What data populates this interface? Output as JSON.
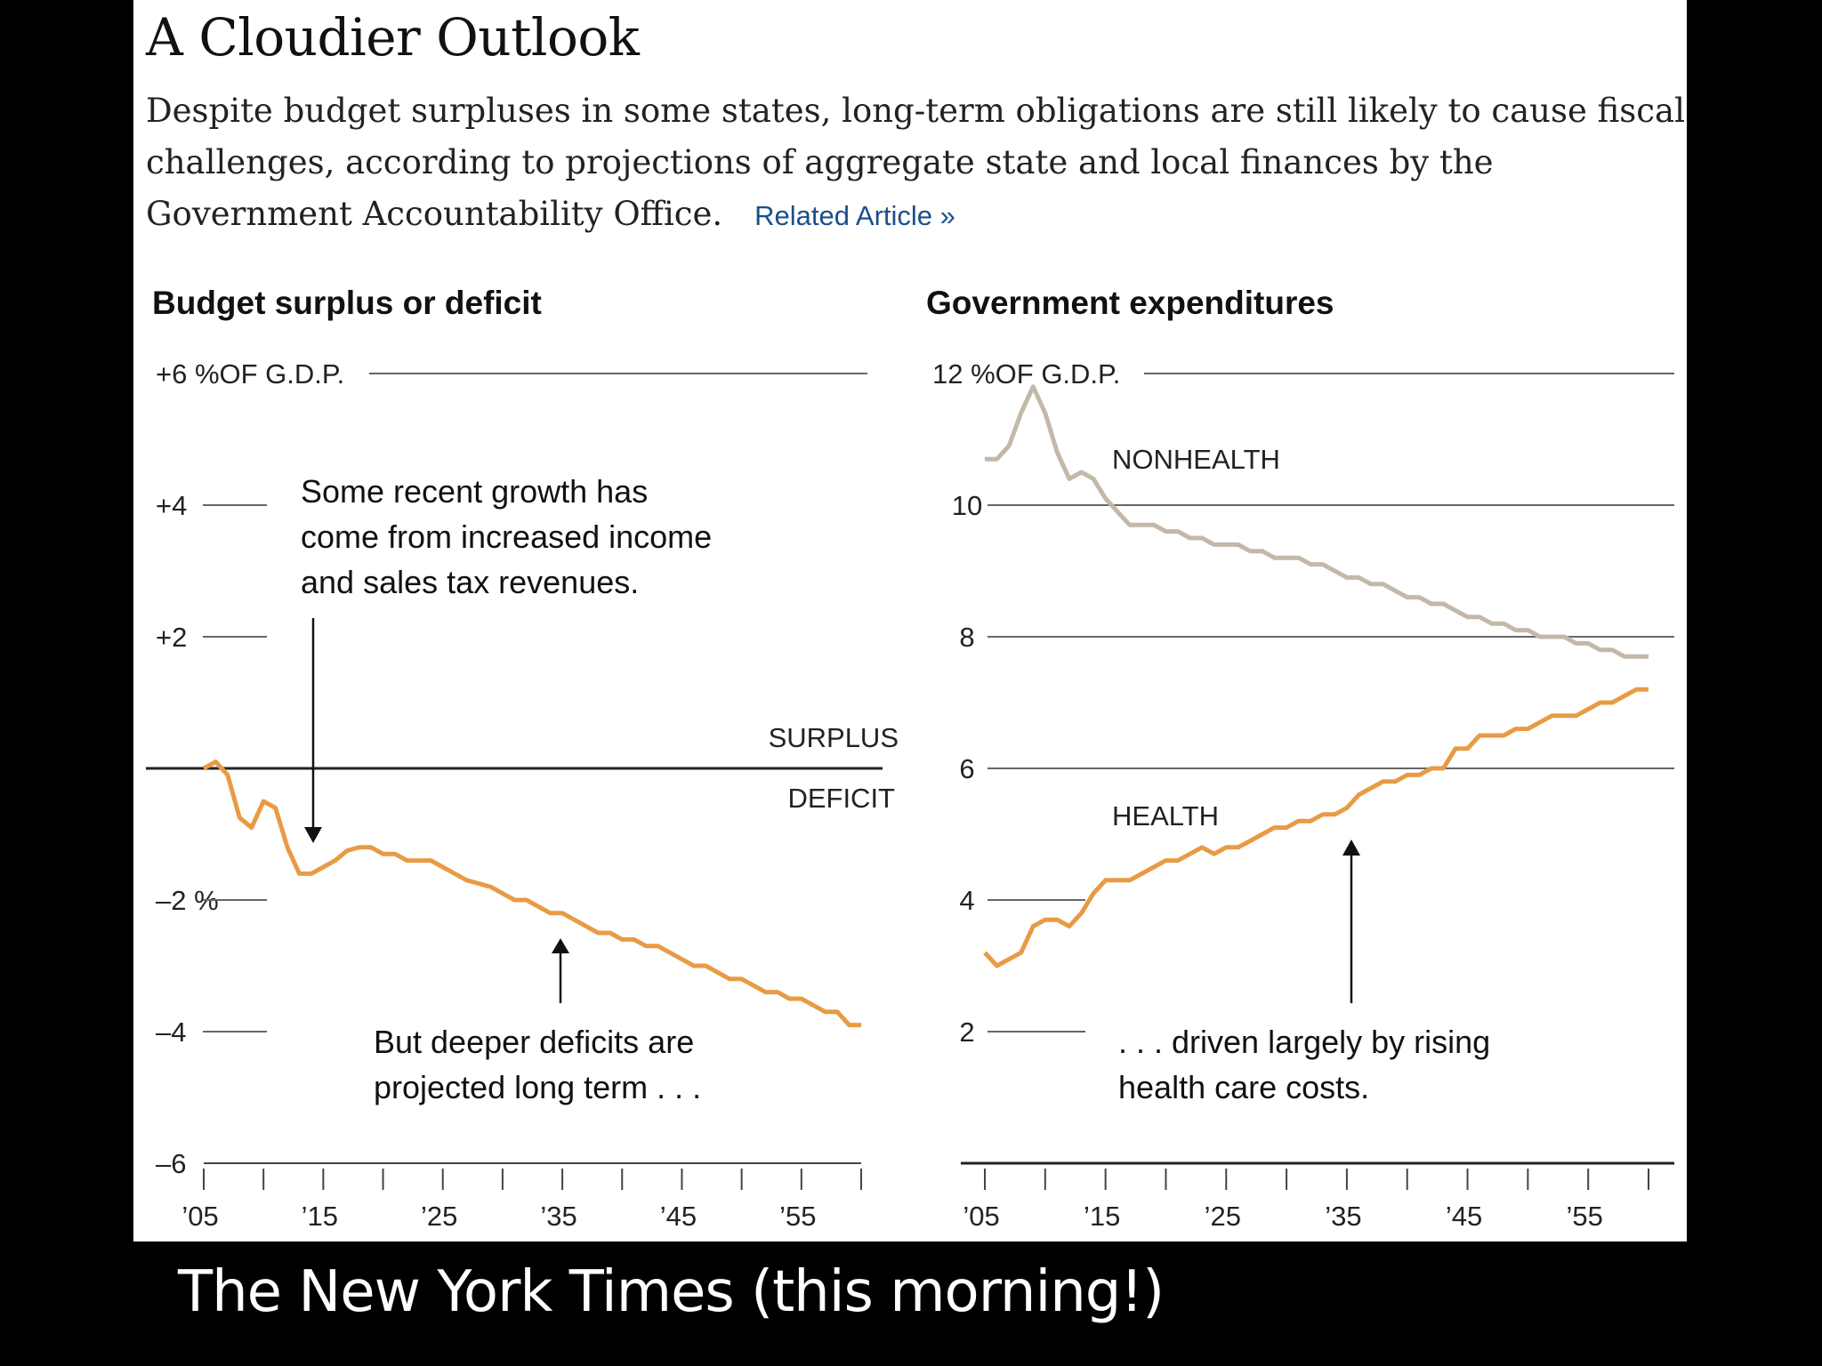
{
  "headline": "A Cloudier Outlook",
  "deck": "Despite budget surpluses in some states, long-term obligations are still likely to cause fiscal challenges, according to projections of aggregate state and local finances by the Government Accountability Office.",
  "related_link": "Related Article »",
  "caption": "The New York Times (this morning!)",
  "colors": {
    "line_primary": "#e89b45",
    "line_secondary": "#c4b8a8"
  },
  "chart_data": [
    {
      "type": "line",
      "title": "Budget surplus or deficit",
      "ylim": [
        -6,
        6
      ],
      "yticks": [
        {
          "v": 6,
          "label": "+6 %OF G.D.P."
        },
        {
          "v": 4,
          "label": "+4"
        },
        {
          "v": 2,
          "label": "+2"
        },
        {
          "v": -2,
          "label": "–2 %"
        },
        {
          "v": -4,
          "label": "–4"
        },
        {
          "v": -6,
          "label": "–6"
        }
      ],
      "xlim": [
        2005,
        2060
      ],
      "xticks": [
        2005,
        2010,
        2015,
        2020,
        2025,
        2030,
        2035,
        2040,
        2045,
        2050,
        2055,
        2060
      ],
      "xtick_labels": [
        {
          "v": 2005,
          "label": "’05"
        },
        {
          "v": 2015,
          "label": "’15"
        },
        {
          "v": 2025,
          "label": "’25"
        },
        {
          "v": 2035,
          "label": "’35"
        },
        {
          "v": 2045,
          "label": "’45"
        },
        {
          "v": 2055,
          "label": "’55"
        }
      ],
      "zero_labels": {
        "above": "SURPLUS",
        "below": "DEFICIT"
      },
      "series": [
        {
          "x": [
            2005,
            2006,
            2007,
            2008,
            2009,
            2010,
            2011,
            2012,
            2013,
            2014,
            2015,
            2016,
            2017,
            2018,
            2019,
            2020,
            2021,
            2022,
            2023,
            2024,
            2025,
            2026,
            2027,
            2028,
            2029,
            2030,
            2031,
            2032,
            2033,
            2034,
            2035,
            2036,
            2037,
            2038,
            2039,
            2040,
            2041,
            2042,
            2043,
            2044,
            2045,
            2046,
            2047,
            2048,
            2049,
            2050,
            2051,
            2052,
            2053,
            2054,
            2055,
            2056,
            2057,
            2058,
            2059,
            2060
          ],
          "values": [
            0.0,
            0.1,
            -0.1,
            -0.75,
            -0.9,
            -0.5,
            -0.6,
            -1.2,
            -1.6,
            -1.6,
            -1.5,
            -1.4,
            -1.25,
            -1.2,
            -1.2,
            -1.3,
            -1.3,
            -1.4,
            -1.4,
            -1.4,
            -1.5,
            -1.6,
            -1.7,
            -1.75,
            -1.8,
            -1.9,
            -2.0,
            -2.0,
            -2.1,
            -2.2,
            -2.2,
            -2.3,
            -2.4,
            -2.5,
            -2.5,
            -2.6,
            -2.6,
            -2.7,
            -2.7,
            -2.8,
            -2.9,
            -3.0,
            -3.0,
            -3.1,
            -3.2,
            -3.2,
            -3.3,
            -3.4,
            -3.4,
            -3.5,
            -3.5,
            -3.6,
            -3.7,
            -3.7,
            -3.9,
            -3.9
          ]
        }
      ],
      "annotations": [
        {
          "lines": [
            "Some recent growth has",
            "come from increased income",
            "and sales tax revenues."
          ]
        },
        {
          "lines": [
            "But deeper deficits are",
            "projected long term . . ."
          ]
        }
      ]
    },
    {
      "type": "line",
      "title": "Government expenditures",
      "ylim": [
        0,
        12
      ],
      "yticks": [
        {
          "v": 12,
          "label": "12 %OF G.D.P."
        },
        {
          "v": 10,
          "label": "10"
        },
        {
          "v": 8,
          "label": "8"
        },
        {
          "v": 6,
          "label": "6"
        },
        {
          "v": 4,
          "label": "4"
        },
        {
          "v": 2,
          "label": "2"
        }
      ],
      "xlim": [
        2005,
        2060
      ],
      "xticks": [
        2005,
        2010,
        2015,
        2020,
        2025,
        2030,
        2035,
        2040,
        2045,
        2050,
        2055,
        2060
      ],
      "xtick_labels": [
        {
          "v": 2005,
          "label": "’05"
        },
        {
          "v": 2015,
          "label": "’15"
        },
        {
          "v": 2025,
          "label": "’25"
        },
        {
          "v": 2035,
          "label": "’35"
        },
        {
          "v": 2045,
          "label": "’45"
        },
        {
          "v": 2055,
          "label": "’55"
        }
      ],
      "series": [
        {
          "name": "NONHEALTH",
          "x": [
            2005,
            2006,
            2007,
            2008,
            2009,
            2010,
            2011,
            2012,
            2013,
            2014,
            2015,
            2016,
            2017,
            2018,
            2019,
            2020,
            2021,
            2022,
            2023,
            2024,
            2025,
            2026,
            2027,
            2028,
            2029,
            2030,
            2031,
            2032,
            2033,
            2034,
            2035,
            2036,
            2037,
            2038,
            2039,
            2040,
            2041,
            2042,
            2043,
            2044,
            2045,
            2046,
            2047,
            2048,
            2049,
            2050,
            2051,
            2052,
            2053,
            2054,
            2055,
            2056,
            2057,
            2058,
            2059,
            2060
          ],
          "values": [
            10.7,
            10.7,
            10.9,
            11.4,
            11.8,
            11.4,
            10.8,
            10.4,
            10.5,
            10.4,
            10.1,
            9.9,
            9.7,
            9.7,
            9.7,
            9.6,
            9.6,
            9.5,
            9.5,
            9.4,
            9.4,
            9.4,
            9.3,
            9.3,
            9.2,
            9.2,
            9.2,
            9.1,
            9.1,
            9.0,
            8.9,
            8.9,
            8.8,
            8.8,
            8.7,
            8.6,
            8.6,
            8.5,
            8.5,
            8.4,
            8.3,
            8.3,
            8.2,
            8.2,
            8.1,
            8.1,
            8.0,
            8.0,
            8.0,
            7.9,
            7.9,
            7.8,
            7.8,
            7.7,
            7.7,
            7.7
          ]
        },
        {
          "name": "HEALTH",
          "x": [
            2005,
            2006,
            2007,
            2008,
            2009,
            2010,
            2011,
            2012,
            2013,
            2014,
            2015,
            2016,
            2017,
            2018,
            2019,
            2020,
            2021,
            2022,
            2023,
            2024,
            2025,
            2026,
            2027,
            2028,
            2029,
            2030,
            2031,
            2032,
            2033,
            2034,
            2035,
            2036,
            2037,
            2038,
            2039,
            2040,
            2041,
            2042,
            2043,
            2044,
            2045,
            2046,
            2047,
            2048,
            2049,
            2050,
            2051,
            2052,
            2053,
            2054,
            2055,
            2056,
            2057,
            2058,
            2059,
            2060
          ],
          "values": [
            3.2,
            3.0,
            3.1,
            3.2,
            3.6,
            3.7,
            3.7,
            3.6,
            3.8,
            4.1,
            4.3,
            4.3,
            4.3,
            4.4,
            4.5,
            4.6,
            4.6,
            4.7,
            4.8,
            4.7,
            4.8,
            4.8,
            4.9,
            5.0,
            5.1,
            5.1,
            5.2,
            5.2,
            5.3,
            5.3,
            5.4,
            5.6,
            5.7,
            5.8,
            5.8,
            5.9,
            5.9,
            6.0,
            6.0,
            6.3,
            6.3,
            6.5,
            6.5,
            6.5,
            6.6,
            6.6,
            6.7,
            6.8,
            6.8,
            6.8,
            6.9,
            7.0,
            7.0,
            7.1,
            7.2,
            7.2
          ]
        }
      ],
      "annotations": [
        {
          "lines": [
            ". . . driven largely by rising",
            "health care costs."
          ]
        }
      ]
    }
  ]
}
